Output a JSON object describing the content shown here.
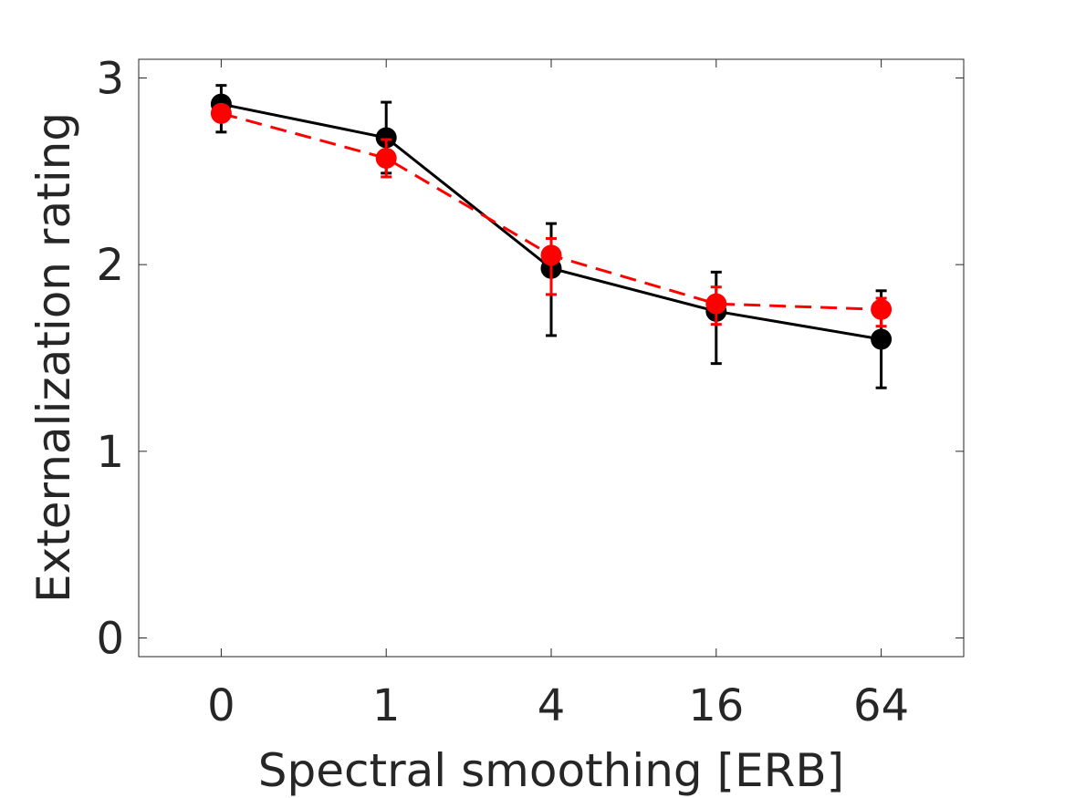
{
  "chart_data": {
    "type": "line",
    "title": "",
    "xlabel": "Spectral smoothing [ERB]",
    "ylabel": "Externalization rating",
    "categories": [
      "0",
      "1",
      "4",
      "16",
      "64"
    ],
    "ylim": [
      -0.1,
      3.1
    ],
    "yticks": [
      0,
      1,
      2,
      3
    ],
    "grid": false,
    "series": [
      {
        "color": "#000000",
        "line_style": "solid",
        "values": [
          2.86,
          2.68,
          1.98,
          1.75,
          1.6
        ],
        "err_low": [
          2.71,
          2.49,
          1.62,
          1.47,
          1.34
        ],
        "err_high": [
          2.96,
          2.87,
          2.22,
          1.96,
          1.86
        ]
      },
      {
        "color": "#ff0000",
        "line_style": "dashed",
        "values": [
          2.81,
          2.57,
          2.05,
          1.79,
          1.76
        ],
        "err_low": [
          2.78,
          2.47,
          1.84,
          1.68,
          1.67
        ],
        "err_high": [
          2.84,
          2.67,
          2.14,
          1.88,
          1.82
        ]
      }
    ]
  }
}
